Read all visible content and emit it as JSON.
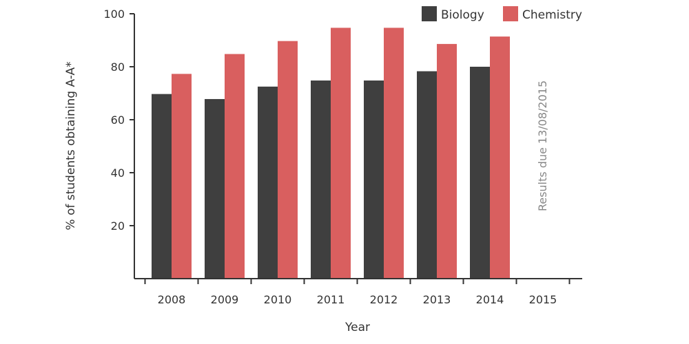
{
  "chart_data": {
    "type": "bar",
    "title": "",
    "xlabel": "Year",
    "ylabel": "% of students obtaining A-A*",
    "categories": [
      "2008",
      "2009",
      "2010",
      "2011",
      "2012",
      "2013",
      "2014",
      "2015"
    ],
    "series": [
      {
        "name": "Biology",
        "color": "#3f3f3f",
        "values": [
          69.7,
          67.8,
          72.5,
          74.8,
          74.8,
          78.3,
          80.0,
          null
        ]
      },
      {
        "name": "Chemistry",
        "color": "#d95f5f",
        "values": [
          77.3,
          84.8,
          89.7,
          94.7,
          94.7,
          88.6,
          91.4,
          null
        ]
      }
    ],
    "yticks": [
      20,
      40,
      60,
      80,
      100
    ],
    "ylim": [
      0,
      100
    ],
    "grid": false,
    "legend": "top-right",
    "annotation": "Results due 13/08/2015"
  }
}
